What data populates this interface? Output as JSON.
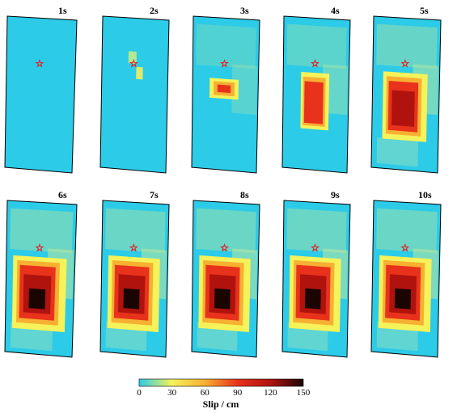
{
  "panels": [
    {
      "label": "1s",
      "stage": 0.0
    },
    {
      "label": "2s",
      "stage": 0.07
    },
    {
      "label": "3s",
      "stage": 0.28
    },
    {
      "label": "4s",
      "stage": 0.55
    },
    {
      "label": "5s",
      "stage": 0.85
    },
    {
      "label": "6s",
      "stage": 1.0
    },
    {
      "label": "7s",
      "stage": 1.0
    },
    {
      "label": "8s",
      "stage": 1.0
    },
    {
      "label": "9s",
      "stage": 1.0
    },
    {
      "label": "10s",
      "stage": 1.0
    }
  ],
  "colorbar": {
    "ticks": [
      "0",
      "30",
      "60",
      "90",
      "120",
      "150"
    ],
    "label": "Slip / cm",
    "min": 0,
    "max": 150
  },
  "colors": {
    "background": "#2ccbe8",
    "hypocenter": "#e0202a",
    "stops": [
      "#2ccbe8",
      "#f5f25a",
      "#f7b032",
      "#e8321c",
      "#b0120e",
      "#1a0502"
    ]
  }
}
